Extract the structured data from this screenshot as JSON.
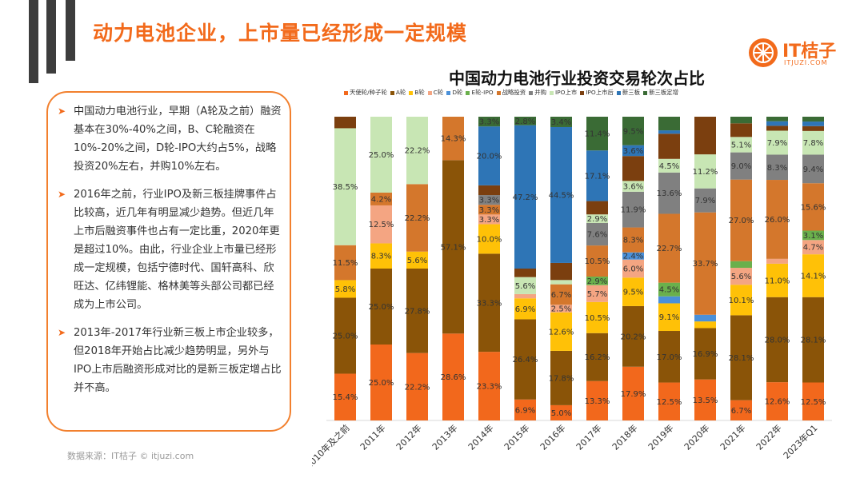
{
  "page_title": "动力电池企业，上市量已经形成一定规模",
  "logo": {
    "text": "IT桔子",
    "sub": "ITJUZI.COM"
  },
  "text_points": [
    "中国动力电池行业，早期（A轮及之前）融资基本在30%-40%之间，B、C轮融资在10%-20%之间，D轮-IPO大约占5%，战略投资20%左右，并购10%左右。",
    "2016年之前，行业IPO及新三板挂牌事件占比较高，近几年有明显减少趋势。但近几年上市后融资事件也占有一定比重，2020年更是超过10%。由此，行业企业上市量已经形成一定规模，包括宁德时代、国轩高科、欣旺达、亿纬锂能、格林美等头部公司都已经成为上市公司。",
    "2013年-2017年行业新三板上市企业较多，但2018年开始占比减少趋势明显，另外与IPO上市后融资形成对比的是新三板定增占比并不高。"
  ],
  "source": "数据来源：IT桔子 © itjuzi.com",
  "chart_data": {
    "type": "bar",
    "stacked": true,
    "normalized": true,
    "title": "中国动力电池行业投资交易轮次占比",
    "ylim": [
      0,
      100
    ],
    "categories": [
      "2010年及之前",
      "2011年",
      "2012年",
      "2013年",
      "2014年",
      "2015年",
      "2016年",
      "2017年",
      "2018年",
      "2019年",
      "2020年",
      "2021年",
      "2022年",
      "2023年Q1"
    ],
    "series": [
      {
        "name": "天使轮/种子轮",
        "color": "#f2681c",
        "values": [
          15.4,
          25.0,
          22.2,
          28.6,
          23.3,
          6.9,
          5.0,
          13.3,
          17.9,
          12.5,
          13.5,
          6.7,
          12.6,
          12.5
        ]
      },
      {
        "name": "A轮",
        "color": "#8a5408",
        "values": [
          25.0,
          25.0,
          27.8,
          57.1,
          33.3,
          26.4,
          17.8,
          16.2,
          20.2,
          17.0,
          16.9,
          28.1,
          28.0,
          28.1
        ]
      },
      {
        "name": "B轮",
        "color": "#ffc107",
        "values": [
          5.8,
          8.3,
          5.6,
          0,
          10.0,
          6.9,
          12.6,
          10.5,
          9.5,
          9.1,
          2.2,
          10.1,
          11.0,
          14.1
        ]
      },
      {
        "name": "C轮",
        "color": "#f4a582",
        "values": [
          0,
          12.5,
          0,
          0,
          3.3,
          1.4,
          2.5,
          5.7,
          6.0,
          0,
          0,
          5.6,
          1.6,
          4.7
        ]
      },
      {
        "name": "D轮",
        "color": "#4a90d9",
        "values": [
          0,
          0,
          0,
          0,
          0,
          0,
          0,
          0,
          2.4,
          2.3,
          2.2,
          0,
          0,
          0
        ]
      },
      {
        "name": "E轮-IPO",
        "color": "#6ab04c",
        "values": [
          0,
          0,
          0,
          0,
          0,
          0,
          0,
          2.9,
          0,
          4.5,
          0,
          2.2,
          0,
          3.1
        ]
      },
      {
        "name": "战略投资",
        "color": "#d4772c",
        "values": [
          11.5,
          4.2,
          22.2,
          14.3,
          3.3,
          0,
          6.7,
          10.5,
          8.3,
          22.7,
          33.7,
          27.0,
          26.0,
          15.6
        ]
      },
      {
        "name": "并购",
        "color": "#808080",
        "values": [
          0,
          0,
          0,
          0,
          3.3,
          0,
          0,
          7.6,
          11.9,
          13.6,
          7.9,
          9.0,
          8.3,
          9.4
        ]
      },
      {
        "name": "IPO上市",
        "color": "#c8e6b4",
        "values": [
          38.5,
          25.0,
          22.2,
          0,
          0,
          5.6,
          1.4,
          2.9,
          3.6,
          4.5,
          11.2,
          5.1,
          7.9,
          7.8
        ]
      },
      {
        "name": "IPO上市后",
        "color": "#7b3f0f",
        "values": [
          3.8,
          0,
          0,
          0,
          3.3,
          2.8,
          5.6,
          4.5,
          8.3,
          8.3,
          12.4,
          4.5,
          1.6,
          1.6
        ]
      },
      {
        "name": "新三板",
        "color": "#2e75b6",
        "values": [
          0,
          0,
          0,
          0,
          20.0,
          47.2,
          44.5,
          17.1,
          3.6,
          1.1,
          0,
          0,
          1.5,
          1.5
        ]
      },
      {
        "name": "新三板定增",
        "color": "#3a6b35",
        "values": [
          0,
          0,
          0,
          0,
          3.3,
          2.8,
          3.4,
          11.4,
          9.5,
          4.5,
          0,
          2.2,
          1.5,
          1.6
        ]
      }
    ],
    "data_labels": [
      [
        "15.4%",
        "25.0%",
        "5.8%",
        "",
        "",
        "",
        "11.5%",
        "",
        "38.5%",
        "",
        "",
        ""
      ],
      [
        "25.0%",
        "25.0%",
        "8.3%",
        "12.5%",
        "",
        "",
        "4.2%",
        "",
        "25.0%",
        "",
        "",
        ""
      ],
      [
        "22.2%",
        "27.8%",
        "5.6%",
        "",
        "",
        "",
        "22.2%",
        "",
        "22.2%",
        "",
        "",
        ""
      ],
      [
        "28.6%",
        "57.1%",
        "",
        "",
        "",
        "",
        "14.3%",
        "",
        "",
        "",
        "",
        ""
      ],
      [
        "23.3%",
        "33.3%",
        "10.0%",
        "3.3%",
        "",
        "",
        "3.3%",
        "3.3%",
        "",
        "",
        "20.0%",
        "3.3%"
      ],
      [
        "6.9%",
        "26.4%",
        "6.9%",
        "1.4%",
        "",
        "",
        "",
        "",
        "5.6%",
        "",
        "47.2%",
        "2.8%"
      ],
      [
        "5.0%",
        "17.8%",
        "12.6%",
        "2.5%",
        "",
        "",
        "6.7%",
        "",
        "",
        "",
        "44.5%",
        "3.4%"
      ],
      [
        "13.3%",
        "16.2%",
        "10.5%",
        "5.7%",
        "",
        "2.9%",
        "10.5%",
        "7.6%",
        "2.9%",
        "",
        "17.1%",
        "11.4%"
      ],
      [
        "17.9%",
        "20.2%",
        "9.5%",
        "6.0%",
        "2.4%",
        "",
        "8.3%",
        "11.9%",
        "3.6%",
        "",
        "3.6%",
        "9.5%"
      ],
      [
        "12.5%",
        "17.0%",
        "9.1%",
        "",
        "2.3%",
        "4.5%",
        "22.7%",
        "13.6%",
        "4.5%",
        "",
        "",
        ""
      ],
      [
        "13.5%",
        "16.9%",
        "2.2%",
        "",
        "2.2%",
        "",
        "33.7%",
        "7.9%",
        "11.2%",
        "",
        "",
        ""
      ],
      [
        "6.7%",
        "28.1%",
        "10.1%",
        "5.6%",
        "",
        "",
        "27.0%",
        "9.0%",
        "5.1%",
        "",
        "",
        ""
      ],
      [
        "12.6%",
        "28.0%",
        "11.0%",
        "1.6%",
        "",
        "",
        "26.0%",
        "8.3%",
        "7.9%",
        "",
        "",
        ""
      ],
      [
        "12.5%",
        "28.1%",
        "14.1%",
        "4.7%",
        "",
        "3.1%",
        "15.6%",
        "9.4%",
        "7.8%",
        "",
        "",
        ""
      ]
    ],
    "xlabel": "",
    "ylabel": "",
    "grid": false,
    "legend_position": "top"
  }
}
